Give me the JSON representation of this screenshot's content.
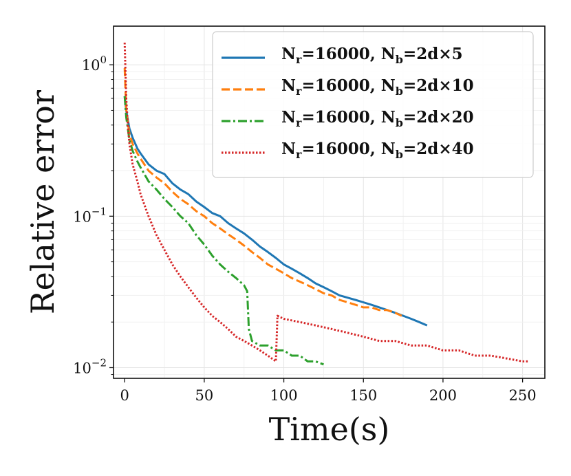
{
  "chart_data": {
    "type": "line",
    "title": "",
    "xlabel": "Time(s)",
    "ylabel": "Relative error",
    "yscale": "log",
    "xlim": [
      -7,
      264
    ],
    "ylim": [
      0.0085,
      1.8
    ],
    "xticks": [
      0,
      50,
      100,
      150,
      200,
      250
    ],
    "xtick_labels": [
      "0",
      "50",
      "100",
      "150",
      "200",
      "250"
    ],
    "yticks": [
      1,
      0.1,
      0.01
    ],
    "ytick_labels": [
      {
        "base": "10",
        "exp": "0"
      },
      {
        "base": "10",
        "exp": "−1"
      },
      {
        "base": "10",
        "exp": "−2"
      }
    ],
    "grid": true,
    "legend_position": "top-right",
    "series": [
      {
        "name": "N_r=16000, N_b=2d×5",
        "label_parts": [
          "N",
          "r",
          "=16000, N",
          "b",
          "=2d×5"
        ],
        "color": "#1f77b4",
        "dash": "solid",
        "x": [
          0,
          1,
          3,
          5,
          8,
          10,
          15,
          20,
          25,
          30,
          35,
          40,
          45,
          50,
          55,
          60,
          65,
          70,
          75,
          80,
          85,
          90,
          95,
          100,
          105,
          110,
          115,
          120,
          125,
          130,
          135,
          140,
          145,
          150,
          155,
          160,
          165,
          170,
          175,
          180,
          185,
          190
        ],
        "y": [
          0.62,
          0.5,
          0.38,
          0.33,
          0.28,
          0.26,
          0.22,
          0.2,
          0.19,
          0.165,
          0.15,
          0.14,
          0.125,
          0.115,
          0.105,
          0.1,
          0.09,
          0.083,
          0.077,
          0.07,
          0.063,
          0.058,
          0.053,
          0.048,
          0.045,
          0.042,
          0.039,
          0.036,
          0.034,
          0.032,
          0.03,
          0.029,
          0.028,
          0.027,
          0.026,
          0.025,
          0.024,
          0.023,
          0.022,
          0.021,
          0.02,
          0.019
        ]
      },
      {
        "name": "N_r=16000, N_b=2d×10",
        "label_parts": [
          "N",
          "r",
          "=16000, N",
          "b",
          "=2d×10"
        ],
        "color": "#ff7f0e",
        "dash": "dashed",
        "x": [
          0,
          1,
          3,
          5,
          8,
          10,
          15,
          20,
          25,
          30,
          35,
          40,
          45,
          50,
          55,
          60,
          65,
          70,
          75,
          80,
          85,
          90,
          95,
          100,
          105,
          110,
          115,
          120,
          125,
          130,
          135,
          140,
          145,
          150,
          155,
          160,
          165,
          170,
          174
        ],
        "y": [
          0.95,
          0.5,
          0.35,
          0.3,
          0.26,
          0.24,
          0.2,
          0.18,
          0.165,
          0.145,
          0.13,
          0.12,
          0.108,
          0.1,
          0.09,
          0.083,
          0.076,
          0.07,
          0.064,
          0.058,
          0.053,
          0.048,
          0.045,
          0.042,
          0.039,
          0.037,
          0.035,
          0.033,
          0.031,
          0.03,
          0.028,
          0.027,
          0.026,
          0.025,
          0.025,
          0.024,
          0.024,
          0.023,
          0.022
        ]
      },
      {
        "name": "N_r=16000, N_b=2d×20",
        "label_parts": [
          "N",
          "r",
          "=16000, N",
          "b",
          "=2d×20"
        ],
        "color": "#2ca02c",
        "dash": "dashdot",
        "x": [
          0,
          1,
          3,
          5,
          8,
          10,
          15,
          20,
          25,
          30,
          35,
          40,
          45,
          50,
          55,
          60,
          65,
          70,
          75,
          77,
          78,
          80,
          85,
          90,
          95,
          100,
          105,
          110,
          115,
          120,
          125
        ],
        "y": [
          0.62,
          0.45,
          0.32,
          0.27,
          0.23,
          0.21,
          0.17,
          0.15,
          0.13,
          0.115,
          0.1,
          0.09,
          0.075,
          0.065,
          0.055,
          0.048,
          0.043,
          0.039,
          0.035,
          0.032,
          0.018,
          0.015,
          0.014,
          0.014,
          0.013,
          0.013,
          0.012,
          0.012,
          0.011,
          0.011,
          0.0105
        ]
      },
      {
        "name": "N_r=16000, N_b=2d×40",
        "label_parts": [
          "N",
          "r",
          "=16000, N",
          "b",
          "=2d×40"
        ],
        "color": "#d62728",
        "dash": "dotted",
        "x": [
          0,
          1,
          2,
          3,
          5,
          8,
          10,
          15,
          20,
          25,
          30,
          35,
          40,
          45,
          50,
          55,
          60,
          65,
          70,
          75,
          80,
          85,
          90,
          95,
          96,
          100,
          110,
          120,
          130,
          140,
          150,
          160,
          170,
          180,
          190,
          200,
          210,
          220,
          230,
          240,
          250,
          254
        ],
        "y": [
          1.4,
          0.6,
          0.4,
          0.3,
          0.22,
          0.17,
          0.14,
          0.1,
          0.075,
          0.06,
          0.048,
          0.04,
          0.034,
          0.029,
          0.025,
          0.022,
          0.02,
          0.018,
          0.016,
          0.015,
          0.014,
          0.013,
          0.012,
          0.011,
          0.022,
          0.021,
          0.02,
          0.019,
          0.018,
          0.017,
          0.016,
          0.015,
          0.015,
          0.014,
          0.014,
          0.013,
          0.013,
          0.012,
          0.012,
          0.0115,
          0.011,
          0.011
        ]
      }
    ]
  }
}
